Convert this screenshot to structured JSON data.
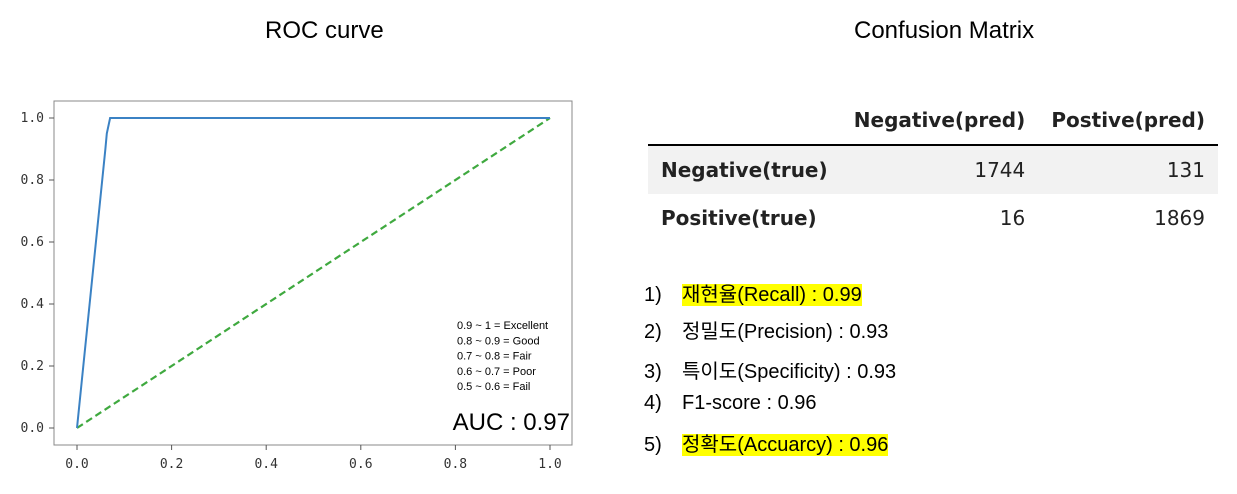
{
  "roc_title": "ROC curve",
  "cm_title": "Confusion Matrix",
  "chart_data": {
    "type": "line",
    "title": "",
    "xlabel": "",
    "ylabel": "",
    "xlim": [
      0.0,
      1.0
    ],
    "ylim": [
      0.0,
      1.0
    ],
    "grid": false,
    "x_ticks": [
      "0.0",
      "0.2",
      "0.4",
      "0.6",
      "0.8",
      "1.0"
    ],
    "y_ticks": [
      "0.0",
      "0.2",
      "0.4",
      "0.6",
      "0.8",
      "1.0"
    ],
    "series": [
      {
        "color": "#3b82c4",
        "style": "solid",
        "x": [
          0.0,
          0.06,
          0.063,
          0.07,
          1.0
        ],
        "y": [
          0.0,
          0.9,
          0.95,
          1.0,
          1.0
        ]
      },
      {
        "color": "#3fa93f",
        "style": "dashed",
        "x": [
          0.0,
          1.0
        ],
        "y": [
          0.0,
          1.0
        ]
      }
    ],
    "annotations": [
      "0.9 ~ 1 = Excellent",
      "0.8 ~ 0.9 = Good",
      "0.7 ~ 0.8 = Fair",
      "0.6 ~ 0.7 = Poor",
      "0.5 ~ 0.6 = Fail"
    ],
    "auc_label": "AUC : 0.97"
  },
  "confusion_matrix": {
    "col_headers": [
      "Negative(pred)",
      "Postive(pred)"
    ],
    "rows": [
      {
        "label": "Negative(true)",
        "values": [
          "1744",
          "131"
        ]
      },
      {
        "label": "Positive(true)",
        "values": [
          "16",
          "1869"
        ]
      }
    ]
  },
  "metrics": [
    {
      "num": "1)",
      "text": "재현율(Recall) : 0.99",
      "highlight": true
    },
    {
      "num": "2)",
      "text": "정밀도(Precision) : 0.93",
      "highlight": false
    },
    {
      "num": "3)",
      "text": "특이도(Specificity) : 0.93",
      "highlight": false
    },
    {
      "num": "4)",
      "text": "F1-score : 0.96",
      "highlight": false
    },
    {
      "num": "5)",
      "text": "정확도(Accuarcy) : 0.96",
      "highlight": true
    }
  ],
  "colors": {
    "highlight": "#ffff00",
    "roc_line": "#3b82c4",
    "diag_line": "#3fa93f"
  }
}
